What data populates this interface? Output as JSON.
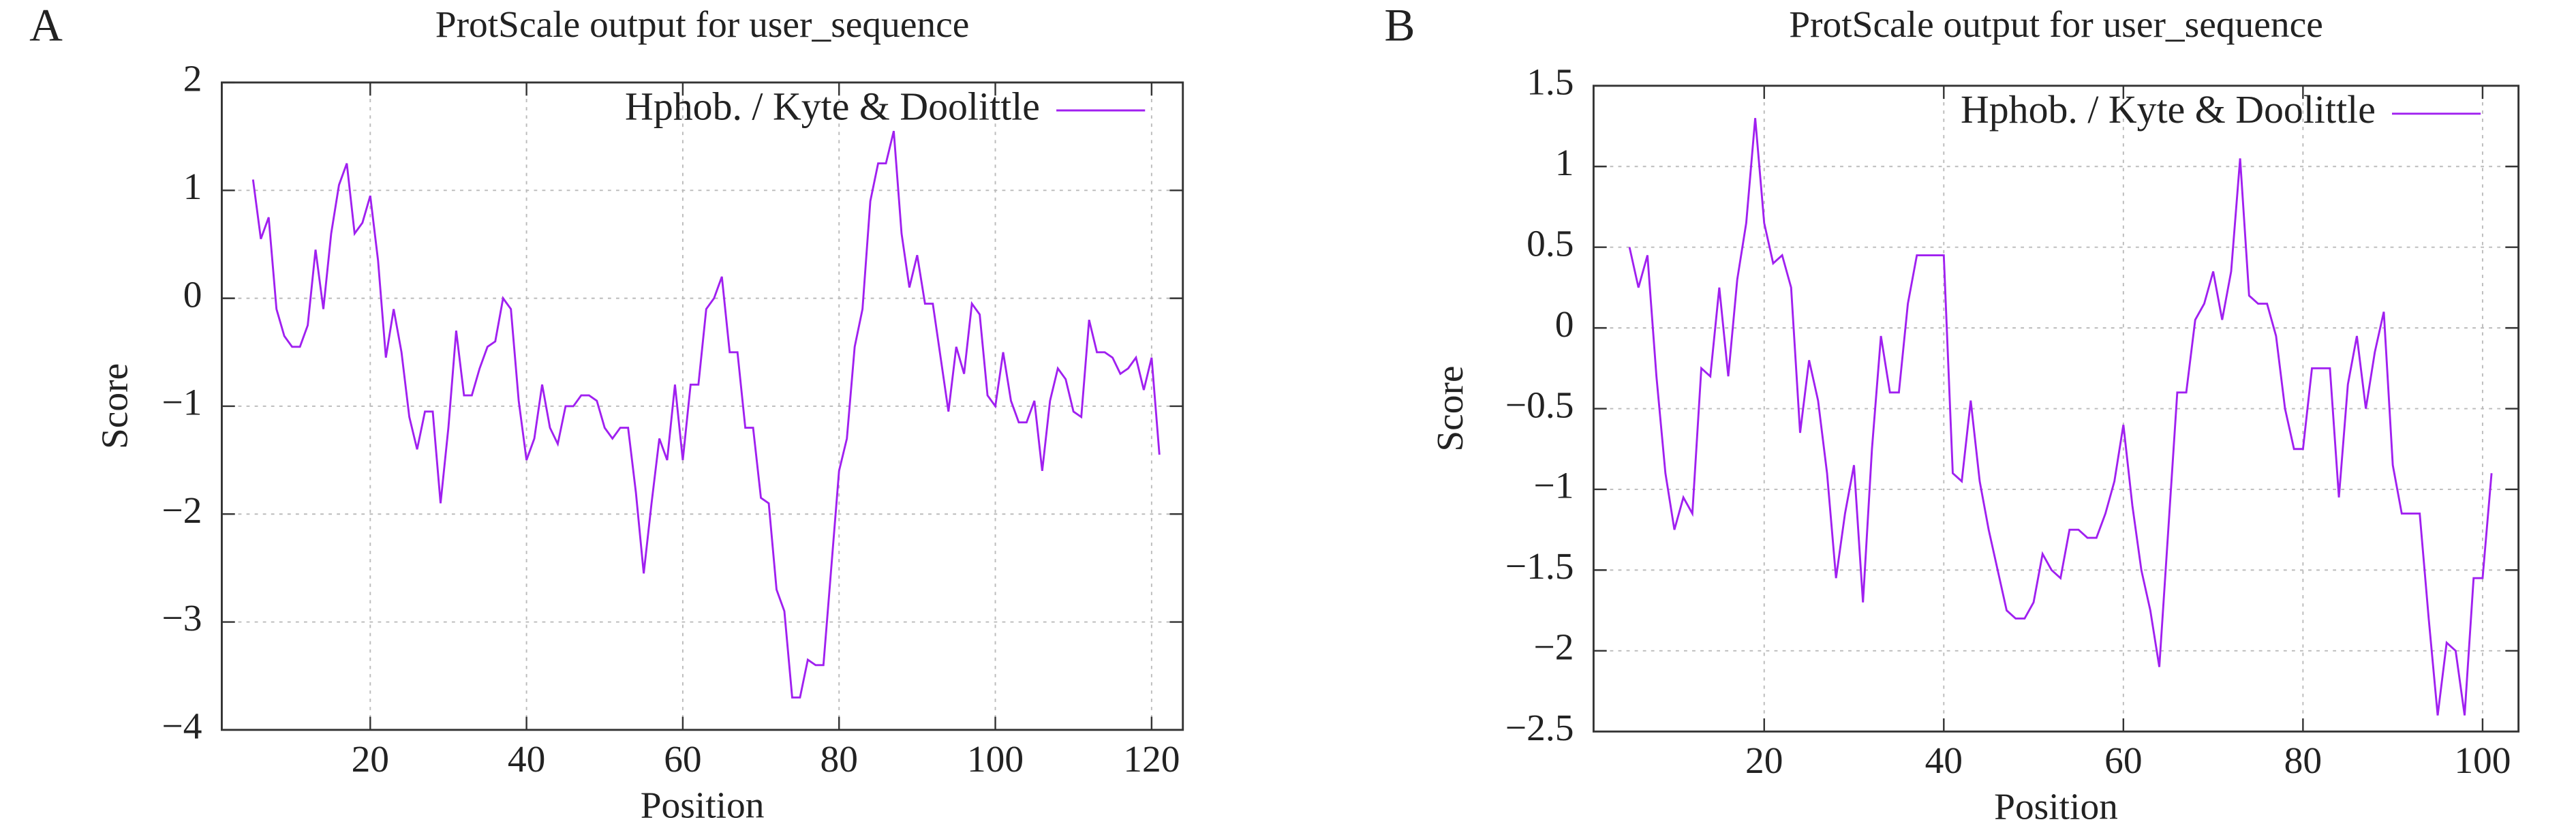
{
  "chart_data": [
    {
      "type": "line",
      "panel_label": "A",
      "title": "ProtScale output for user_sequence",
      "x_label": "Position",
      "y_label": "Score",
      "xlim": [
        1,
        124
      ],
      "ylim": [
        -4,
        2
      ],
      "xticks": [
        20,
        40,
        60,
        80,
        100,
        120
      ],
      "yticks": [
        2,
        1,
        0,
        {
          "value": -1,
          "label": "−1"
        },
        {
          "value": -2,
          "label": "−2"
        },
        {
          "value": -3,
          "label": "−3"
        },
        {
          "value": -4,
          "label": "−4"
        }
      ],
      "grid": true,
      "legend": "upper right",
      "x": [
        5,
        6,
        7,
        8,
        9,
        10,
        11,
        12,
        13,
        14,
        15,
        16,
        17,
        18,
        19,
        20,
        21,
        22,
        23,
        24,
        25,
        26,
        27,
        28,
        29,
        30,
        31,
        32,
        33,
        34,
        35,
        36,
        37,
        38,
        39,
        40,
        41,
        42,
        43,
        44,
        45,
        46,
        47,
        48,
        49,
        50,
        51,
        52,
        53,
        54,
        55,
        56,
        57,
        58,
        59,
        60,
        61,
        62,
        63,
        64,
        65,
        66,
        67,
        68,
        69,
        70,
        71,
        72,
        73,
        74,
        75,
        76,
        77,
        78,
        79,
        80,
        81,
        82,
        83,
        84,
        85,
        86,
        87,
        88,
        89,
        90,
        91,
        92,
        93,
        94,
        95,
        96,
        97,
        98,
        99,
        100,
        101,
        102,
        103,
        104,
        105,
        106,
        107,
        108,
        109,
        110,
        111,
        112,
        113,
        114,
        115,
        116,
        117,
        118,
        119,
        120,
        121
      ],
      "series": [
        {
          "name": "Hphob. / Kyte & Doolittle",
          "color": "#a020f0",
          "values": [
            1.1,
            0.55,
            0.75,
            -0.1,
            -0.35,
            -0.45,
            -0.45,
            -0.25,
            0.45,
            -0.1,
            0.6,
            1.05,
            1.25,
            0.6,
            0.7,
            0.95,
            0.35,
            -0.55,
            -0.1,
            -0.5,
            -1.1,
            -1.4,
            -1.05,
            -1.05,
            -1.9,
            -1.2,
            -0.3,
            -0.9,
            -0.9,
            -0.65,
            -0.45,
            -0.4,
            0.0,
            -0.1,
            -0.95,
            -1.5,
            -1.3,
            -0.8,
            -1.2,
            -1.35,
            -1.0,
            -1.0,
            -0.9,
            -0.9,
            -0.95,
            -1.2,
            -1.3,
            -1.2,
            -1.2,
            -1.8,
            -2.55,
            -1.9,
            -1.3,
            -1.5,
            -0.8,
            -1.5,
            -0.8,
            -0.8,
            -0.1,
            0.0,
            0.2,
            -0.5,
            -0.5,
            -1.2,
            -1.2,
            -1.85,
            -1.9,
            -2.7,
            -2.9,
            -3.7,
            -3.7,
            -3.35,
            -3.4,
            -3.4,
            -2.5,
            -1.6,
            -1.3,
            -0.45,
            -0.1,
            0.9,
            1.25,
            1.25,
            1.55,
            0.6,
            0.1,
            0.4,
            -0.05,
            -0.05,
            -0.55,
            -1.05,
            -0.45,
            -0.7,
            -0.05,
            -0.15,
            -0.9,
            -1.0,
            -0.5,
            -0.95,
            -1.15,
            -1.15,
            -0.95,
            -1.6,
            -0.95,
            -0.65,
            -0.75,
            -1.05,
            -1.1,
            -0.2,
            -0.5,
            -0.5,
            -0.55,
            -0.7,
            -0.65,
            -0.55,
            -0.85,
            -0.55,
            -1.45
          ]
        }
      ]
    },
    {
      "type": "line",
      "panel_label": "B",
      "title": "ProtScale output for user_sequence",
      "x_label": "Position",
      "y_label": "Score",
      "xlim": [
        1,
        104
      ],
      "ylim": [
        -2.5,
        1.5
      ],
      "xticks": [
        20,
        40,
        60,
        80,
        100
      ],
      "yticks": [
        1.5,
        1,
        0.5,
        0,
        {
          "value": -0.5,
          "label": "−0.5"
        },
        {
          "value": -1,
          "label": "−1"
        },
        {
          "value": -1.5,
          "label": "−1.5"
        },
        {
          "value": -2,
          "label": "−2"
        },
        {
          "value": -2.5,
          "label": "−2.5"
        }
      ],
      "grid": true,
      "legend": "upper right",
      "x": [
        5,
        6,
        7,
        8,
        9,
        10,
        11,
        12,
        13,
        14,
        15,
        16,
        17,
        18,
        19,
        20,
        21,
        22,
        23,
        24,
        25,
        26,
        27,
        28,
        29,
        30,
        31,
        32,
        33,
        34,
        35,
        36,
        37,
        38,
        39,
        40,
        41,
        42,
        43,
        44,
        45,
        46,
        47,
        48,
        49,
        50,
        51,
        52,
        53,
        54,
        55,
        56,
        57,
        58,
        59,
        60,
        61,
        62,
        63,
        64,
        65,
        66,
        67,
        68,
        69,
        70,
        71,
        72,
        73,
        74,
        75,
        76,
        77,
        78,
        79,
        80,
        81,
        82,
        83,
        84,
        85,
        86,
        87,
        88,
        89,
        90,
        91,
        92,
        93,
        94,
        95,
        96,
        97,
        98,
        99,
        100,
        101
      ],
      "series": [
        {
          "name": "Hphob. / Kyte & Doolittle",
          "color": "#a020f0",
          "values": [
            0.5,
            0.25,
            0.45,
            -0.3,
            -0.9,
            -1.25,
            -1.05,
            -1.15,
            -0.25,
            -0.3,
            0.25,
            -0.3,
            0.3,
            0.65,
            1.3,
            0.65,
            0.4,
            0.45,
            0.25,
            -0.65,
            -0.2,
            -0.45,
            -0.9,
            -1.55,
            -1.15,
            -0.85,
            -1.7,
            -0.75,
            -0.05,
            -0.4,
            -0.4,
            0.15,
            0.45,
            0.45,
            0.45,
            0.45,
            -0.9,
            -0.95,
            -0.45,
            -0.95,
            -1.25,
            -1.5,
            -1.75,
            -1.8,
            -1.8,
            -1.7,
            -1.4,
            -1.5,
            -1.55,
            -1.25,
            -1.25,
            -1.3,
            -1.3,
            -1.15,
            -0.95,
            -0.6,
            -1.1,
            -1.5,
            -1.75,
            -2.1,
            -1.25,
            -0.4,
            -0.4,
            0.05,
            0.15,
            0.35,
            0.05,
            0.35,
            1.05,
            0.2,
            0.15,
            0.15,
            -0.05,
            -0.5,
            -0.75,
            -0.75,
            -0.25,
            -0.25,
            -0.25,
            -1.05,
            -0.35,
            -0.05,
            -0.5,
            -0.15,
            0.1,
            -0.85,
            -1.15,
            -1.15,
            -1.15,
            -1.8,
            -2.4,
            -1.95,
            -2.0,
            -2.4,
            -1.55,
            -1.55,
            -0.9
          ]
        }
      ]
    }
  ]
}
